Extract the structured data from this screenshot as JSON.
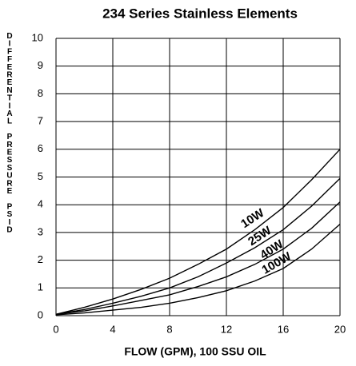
{
  "chart_data": {
    "type": "line",
    "title": "234 Series Stainless Elements",
    "xlabel": "FLOW (GPM), 100 SSU OIL",
    "ylabel": "DIFFERENTIAL PRESSURE PSID",
    "x": [
      0,
      2,
      4,
      6,
      8,
      10,
      12,
      14,
      16,
      18,
      20
    ],
    "series": [
      {
        "name": "10W",
        "color": "#000000",
        "values": [
          0.05,
          0.3,
          0.6,
          0.95,
          1.35,
          1.85,
          2.4,
          3.1,
          3.9,
          4.9,
          6.0
        ]
      },
      {
        "name": "25W",
        "color": "#000000",
        "values": [
          0.05,
          0.22,
          0.45,
          0.7,
          1.0,
          1.4,
          1.9,
          2.45,
          3.1,
          3.95,
          4.95
        ]
      },
      {
        "name": "40W",
        "color": "#000000",
        "values": [
          0.05,
          0.17,
          0.35,
          0.55,
          0.75,
          1.05,
          1.4,
          1.85,
          2.4,
          3.15,
          4.1
        ]
      },
      {
        "name": "100W",
        "color": "#000000",
        "values": [
          0.03,
          0.1,
          0.2,
          0.3,
          0.45,
          0.65,
          0.9,
          1.25,
          1.7,
          2.4,
          3.3
        ]
      }
    ],
    "xlim": [
      0,
      20
    ],
    "xticks": [
      0,
      4,
      8,
      12,
      16,
      20
    ],
    "ylim": [
      0,
      10
    ],
    "yticks": [
      0,
      1,
      2,
      3,
      4,
      5,
      6,
      7,
      8,
      9,
      10
    ],
    "grid": true
  }
}
